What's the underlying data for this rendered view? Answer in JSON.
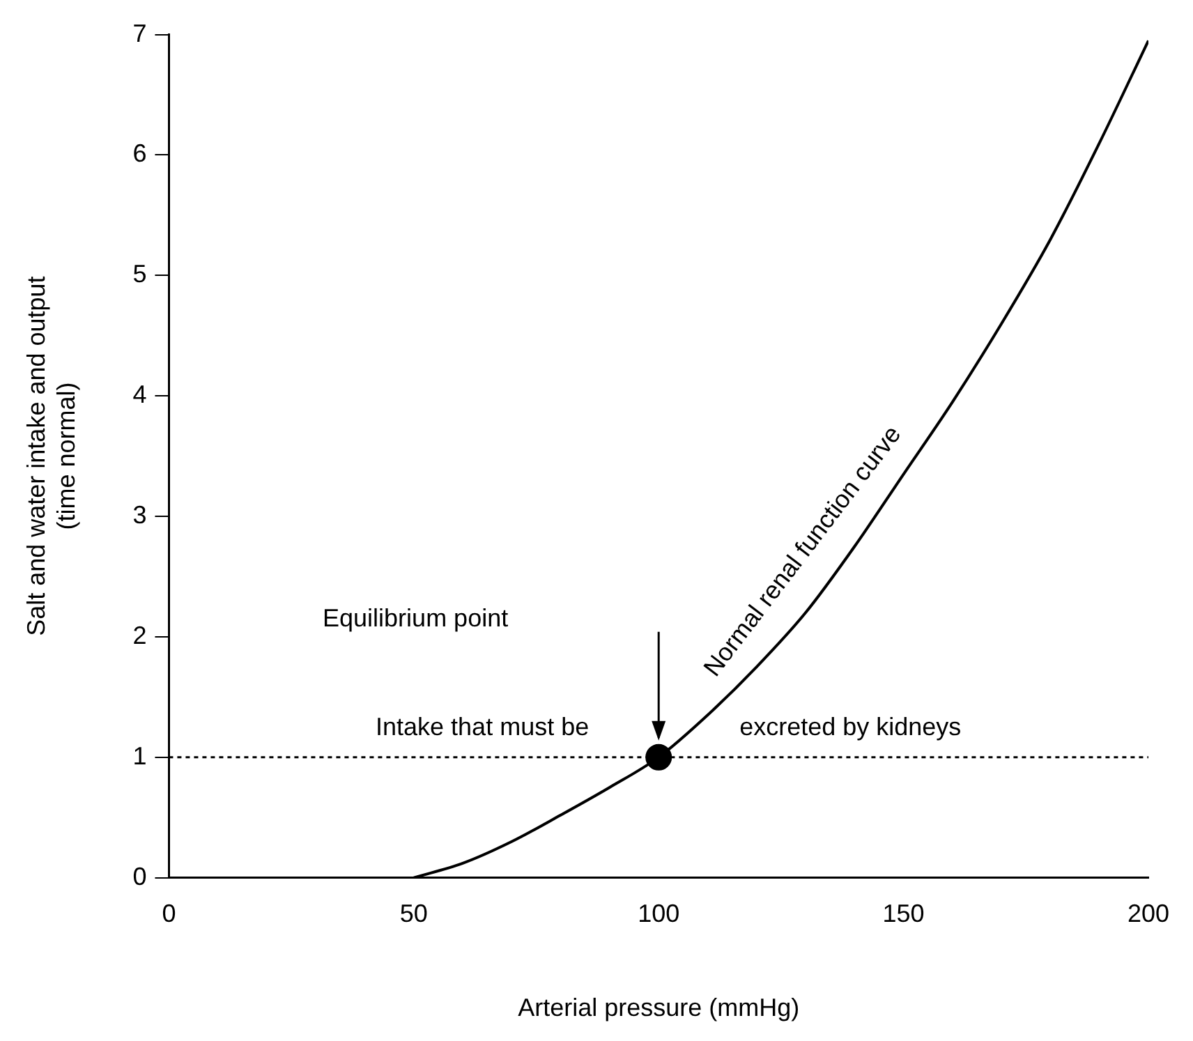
{
  "chart_data": {
    "type": "line",
    "xlabel": "Arterial pressure (mmHg)",
    "ylabel": "Salt and water intake and output\n(time normal)",
    "series": [
      {
        "name": "Normal renal function curve",
        "color": "#000000",
        "x": [
          50,
          60,
          70,
          80,
          90,
          100,
          110,
          120,
          130,
          140,
          150,
          160,
          170,
          180,
          190,
          200
        ],
        "values": [
          0,
          0.12,
          0.3,
          0.52,
          0.75,
          1.0,
          1.35,
          1.75,
          2.2,
          2.75,
          3.35,
          3.95,
          4.6,
          5.3,
          6.1,
          6.95
        ]
      },
      {
        "type": "scatter",
        "color": "#000000",
        "x": [
          100
        ],
        "values": [
          1
        ],
        "marker": "circle"
      }
    ],
    "xlim": [
      0,
      200
    ],
    "xticks": [
      0,
      50,
      100,
      150,
      200
    ],
    "ylim": [
      0,
      7
    ],
    "yticks": [
      0,
      1,
      2,
      3,
      4,
      5,
      6,
      7
    ],
    "grid": false,
    "legend": false,
    "ref_lines": [
      {
        "axis": "y",
        "value": 1,
        "label": "Intake that must be excreted by kidneys",
        "line_style": "dotted",
        "color": "#000000"
      }
    ],
    "annotations": [
      "Equilibrium point"
    ]
  }
}
